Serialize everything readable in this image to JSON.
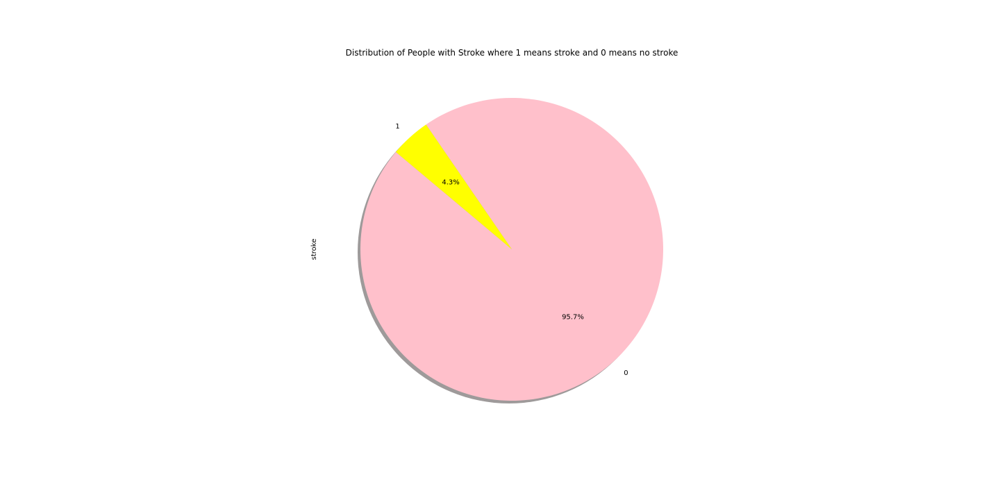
{
  "chart_data": {
    "type": "pie",
    "title": "Distribution of People with Stroke where 1 means stroke and 0 means no stroke",
    "ylabel": "stroke",
    "slices": [
      {
        "label": "0",
        "value": 95.7,
        "pct_label": "95.7%",
        "color": "#ffc0cb"
      },
      {
        "label": "1",
        "value": 4.3,
        "pct_label": "4.3%",
        "color": "#ffff00"
      }
    ],
    "start_angle_deg": 140,
    "shadow": true,
    "shadow_color": "#9e9a9a"
  }
}
